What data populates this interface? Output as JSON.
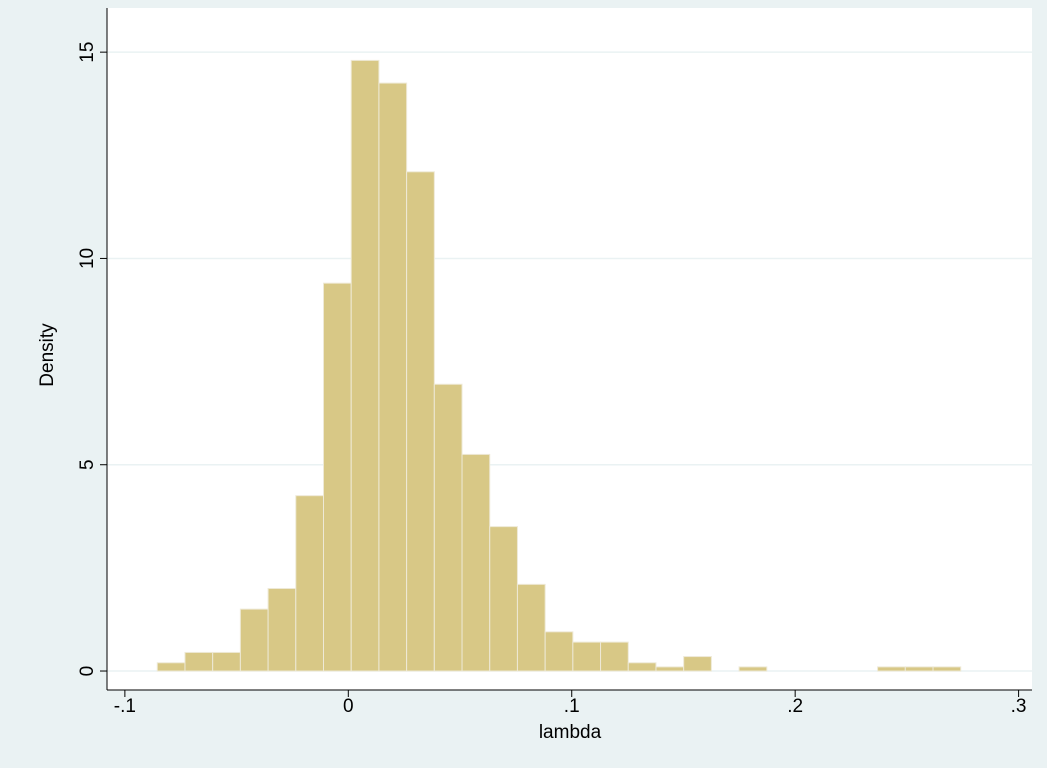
{
  "chart_data": {
    "type": "histogram",
    "x_label": "lambda",
    "y_label": "Density",
    "bins": [
      -0.0855,
      -0.0731,
      -0.0607,
      -0.0483,
      -0.0359,
      -0.0235,
      -0.0111,
      0.0013,
      0.0137,
      0.0261,
      0.0385,
      0.0509,
      0.0633,
      0.0757,
      0.0881,
      0.1005,
      0.1129,
      0.1253,
      0.1377,
      0.1501,
      0.1625,
      0.1749,
      0.1873,
      0.1997,
      0.2121,
      0.2245,
      0.2369,
      0.2493,
      0.2617,
      0.2741
    ],
    "values": [
      0.2,
      0.45,
      0.45,
      1.5,
      2.0,
      4.25,
      9.4,
      14.8,
      14.25,
      12.1,
      6.95,
      5.25,
      3.5,
      2.1,
      0.95,
      0.7,
      0.7,
      0.2,
      0.1,
      0.35,
      0,
      0.1,
      0,
      0,
      0,
      0,
      0.1,
      0.1,
      0.1
    ],
    "color": "#d8c886",
    "xlim": [
      -0.108,
      0.306
    ],
    "ylim": [
      -0.46,
      16.07
    ],
    "xticks": [
      {
        "value": -0.1,
        "label": "-.1"
      },
      0,
      {
        "value": 0.1,
        "label": ".1"
      },
      {
        "value": 0.2,
        "label": ".2"
      },
      {
        "value": 0.3,
        "label": ".3"
      }
    ],
    "yticks": [
      0,
      5,
      10,
      15
    ],
    "grid": true
  }
}
